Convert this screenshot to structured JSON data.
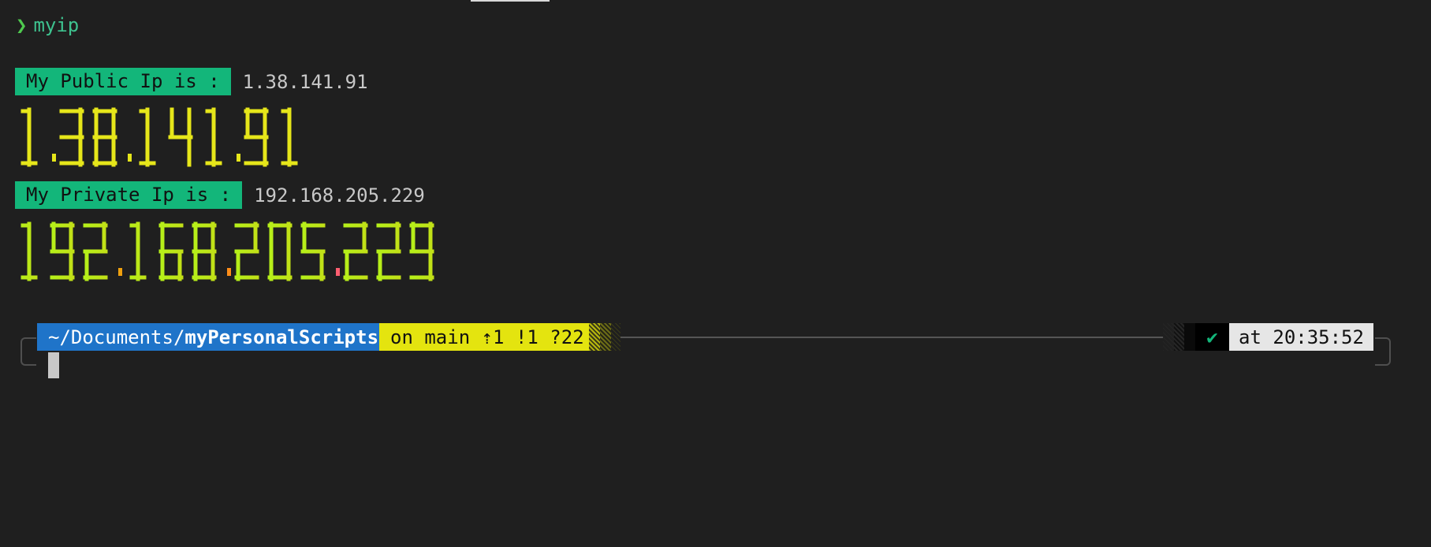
{
  "command": {
    "prompt_symbol": "❯",
    "text": "myip"
  },
  "public": {
    "label": "My Public Ip is :",
    "ip": "1.38.141.91",
    "big_ip": "1.38.141.91",
    "color": "#e6e61a"
  },
  "private": {
    "label": "My Private Ip is :",
    "ip": "192.168.205.229",
    "big_ip": "192.168.205.229",
    "gradient": [
      "#b6f019",
      "#f29c0e",
      "#ff8c1a",
      "#ff5a78",
      "#f0188c"
    ]
  },
  "prompt": {
    "path_prefix": "~/Documents/",
    "path_dir": "myPersonalScripts",
    "git": "on main ⇡1 !1 ?22",
    "status_icon": "✔",
    "time": "at 20:35:52"
  },
  "colors": {
    "background": "#1f1f1f",
    "label_bg": "#13b67a",
    "path_bg": "#1f74c9",
    "git_bg": "#e4e40f"
  }
}
